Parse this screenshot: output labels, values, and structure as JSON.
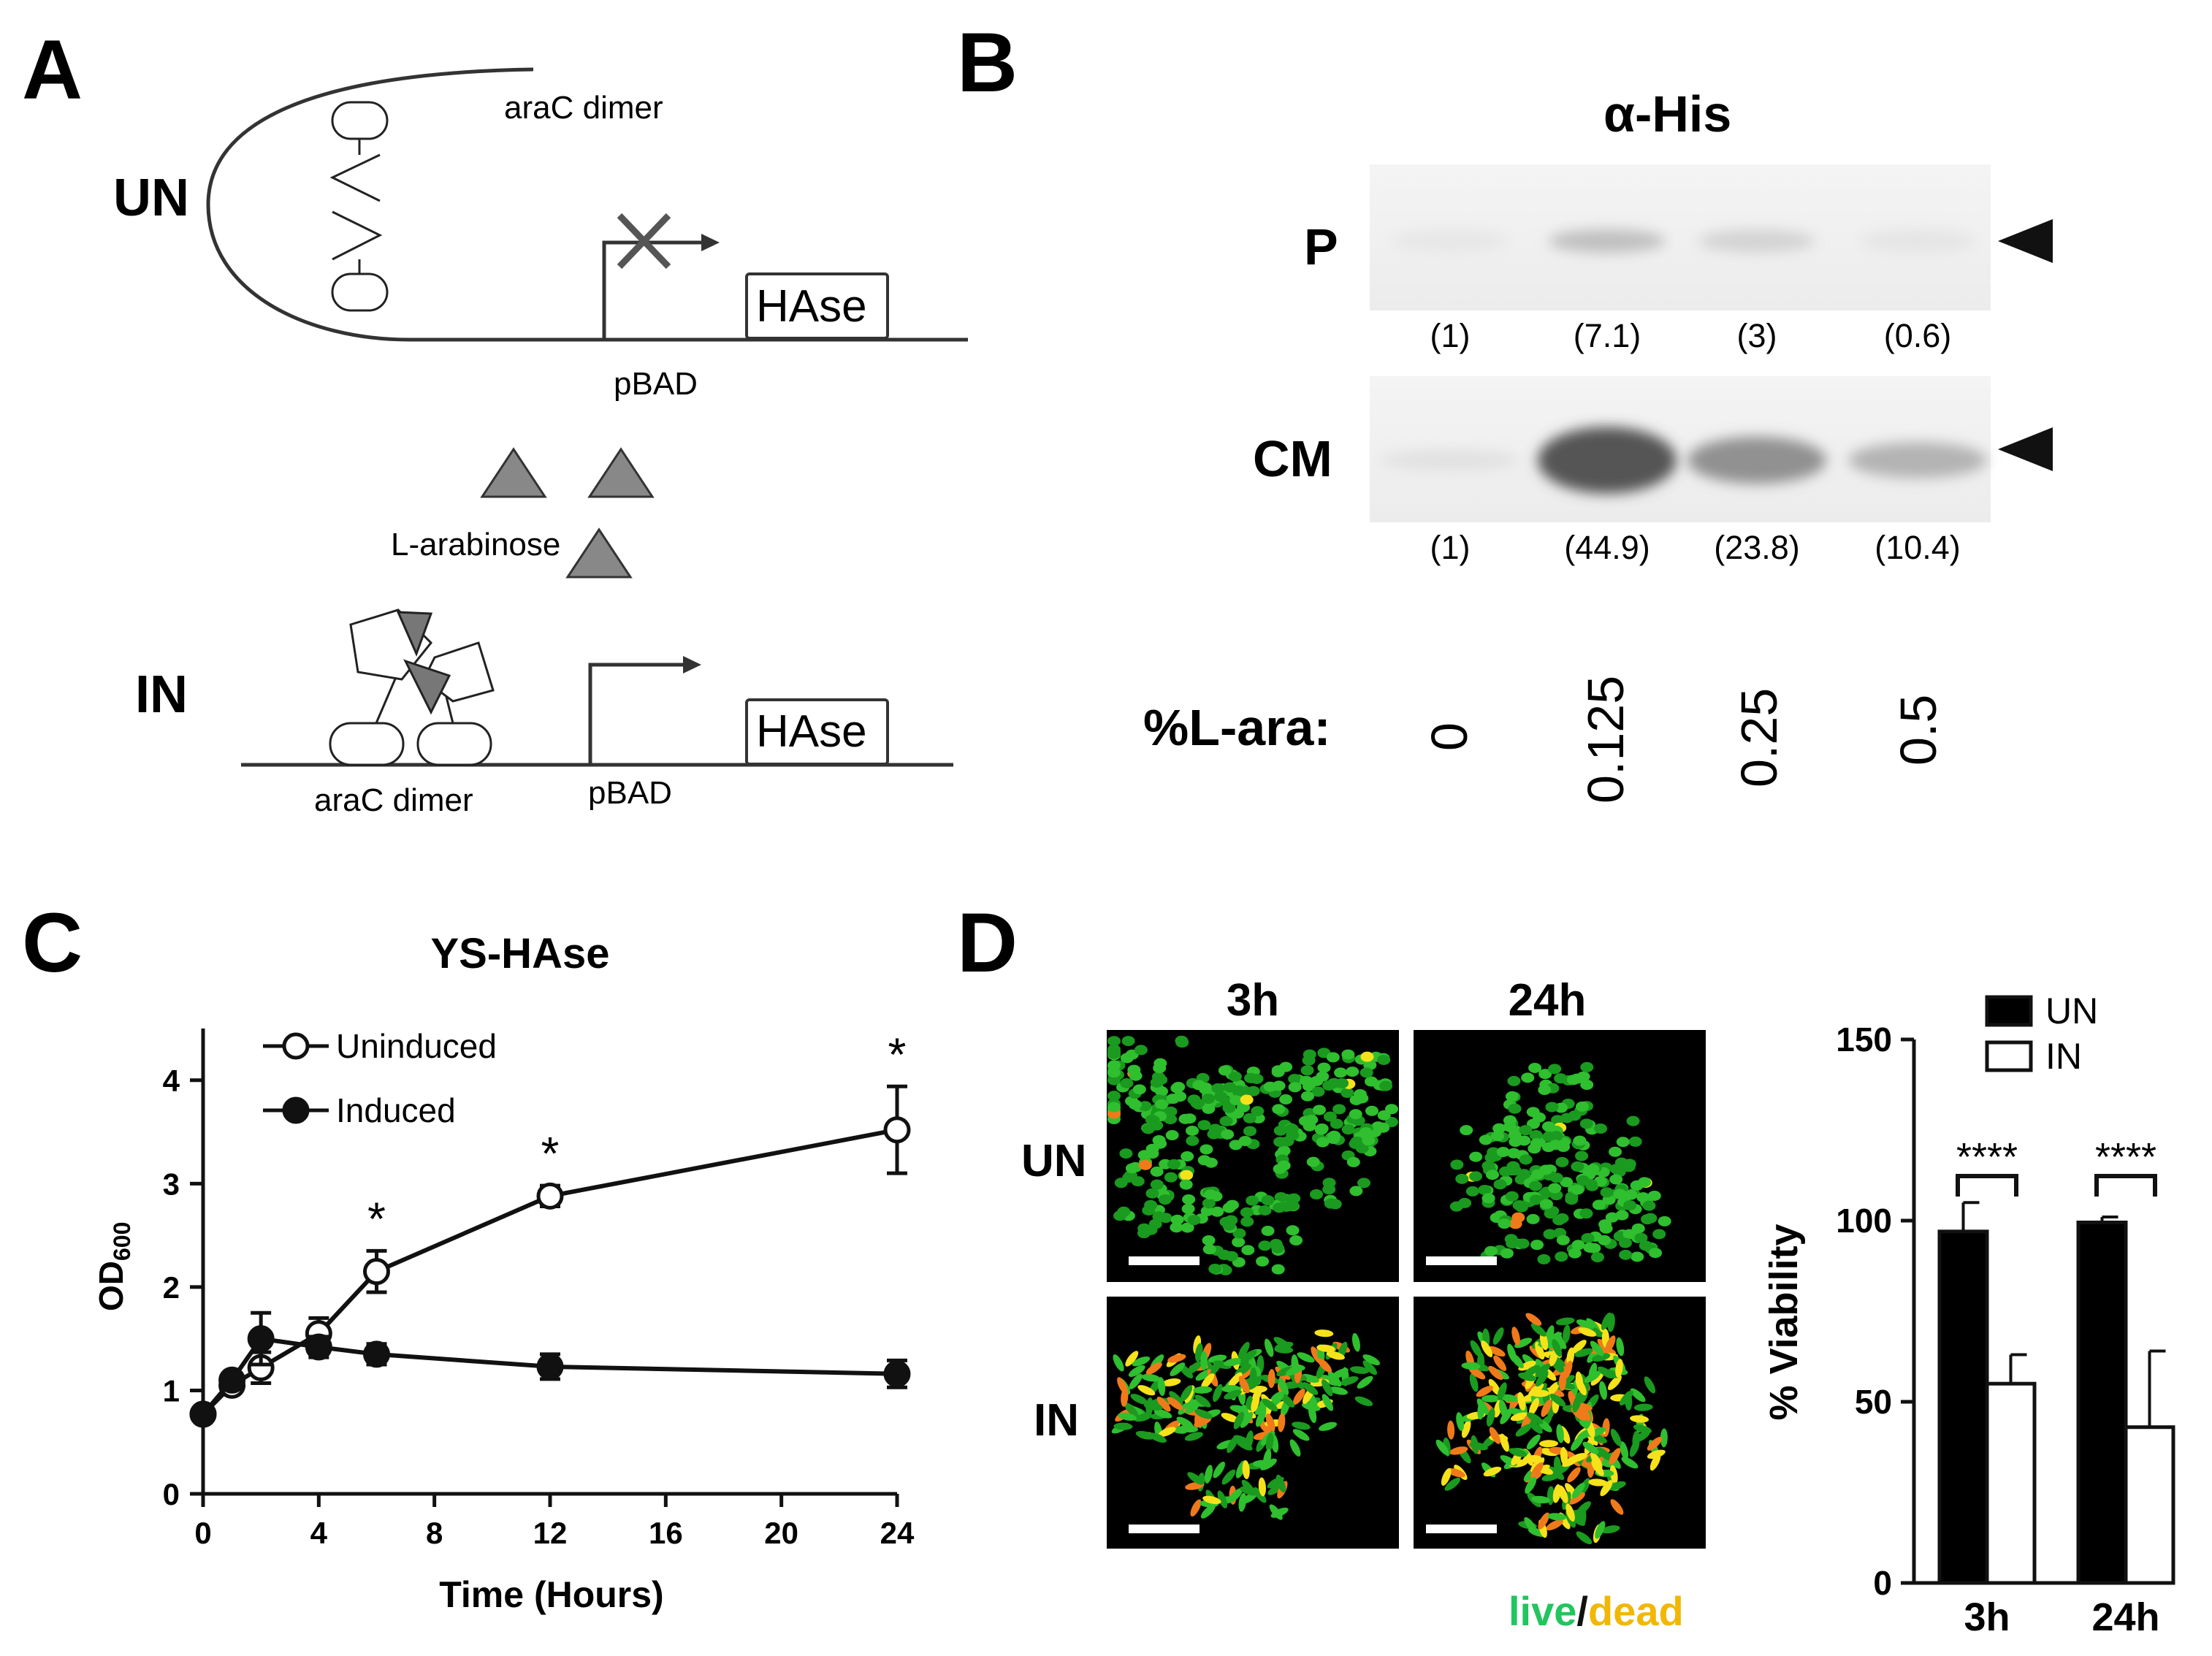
{
  "panels": {
    "A": {
      "letter": "A",
      "un_label": "UN",
      "in_label": "IN",
      "arac_top": "araC dimer",
      "arac_bottom": "araC dimer",
      "pbad_top": "pBAD",
      "pbad_bottom": "pBAD",
      "hase_top": "HAse",
      "hase_bottom": "HAse",
      "inducer": "L-arabinose"
    },
    "B": {
      "letter": "B",
      "title": "α-His",
      "row_p": "P",
      "row_cm": "CM",
      "p_quant": [
        "(1)",
        "(7.1)",
        "(3)",
        "(0.6)"
      ],
      "cm_quant": [
        "(1)",
        "(44.9)",
        "(23.8)",
        "(10.4)"
      ],
      "lara_label": "%L-ara:",
      "lara_values": [
        "0",
        "0.125",
        "0.25",
        "0.5"
      ],
      "p_band_intensity": [
        0.02,
        0.22,
        0.12,
        0.03
      ],
      "cm_band_intensity": [
        0.05,
        0.75,
        0.45,
        0.28
      ]
    },
    "C": {
      "letter": "C",
      "star": "*"
    },
    "D": {
      "letter": "D",
      "col_3h": "3h",
      "col_24h": "24h",
      "row_un": "UN",
      "row_in": "IN",
      "live": "live",
      "slash": "/",
      "dead": "dead",
      "significance": "****"
    }
  },
  "chart_data": [
    {
      "type": "line",
      "title": "YS-HAse",
      "xlabel": "Time (Hours)",
      "ylabel": "OD",
      "ylabel_sub": "600",
      "xlim": [
        0,
        24
      ],
      "ylim": [
        0,
        4.5
      ],
      "xticks": [
        0,
        4,
        8,
        12,
        16,
        20,
        24
      ],
      "yticks": [
        0,
        1,
        2,
        3,
        4
      ],
      "legend": "top-left",
      "series": [
        {
          "name": "Uninduced",
          "marker": "open",
          "x": [
            0,
            1,
            2,
            4,
            6,
            12,
            24
          ],
          "y": [
            0.77,
            1.05,
            1.22,
            1.55,
            2.15,
            2.88,
            3.52
          ],
          "err": [
            0.05,
            0.07,
            0.15,
            0.15,
            0.2,
            0.1,
            0.42
          ]
        },
        {
          "name": "Induced",
          "marker": "filled",
          "x": [
            0,
            1,
            2,
            4,
            6,
            12,
            24
          ],
          "y": [
            0.77,
            1.1,
            1.5,
            1.42,
            1.35,
            1.23,
            1.16
          ],
          "err": [
            0.05,
            0.07,
            0.25,
            0.1,
            0.1,
            0.12,
            0.13
          ]
        }
      ],
      "significance_x": [
        6,
        12,
        24
      ]
    },
    {
      "type": "bar",
      "title": "",
      "xlabel": "",
      "ylabel": "% Viability",
      "ylim": [
        0,
        150
      ],
      "yticks": [
        0,
        50,
        100,
        150
      ],
      "categories": [
        "3h",
        "24h"
      ],
      "legend": "top-right",
      "series": [
        {
          "name": "UN",
          "color": "#000000",
          "values": [
            97,
            99.5
          ],
          "err": [
            8,
            1.5
          ]
        },
        {
          "name": "IN",
          "color": "#ffffff",
          "values": [
            55,
            43
          ],
          "err": [
            8,
            21
          ]
        }
      ]
    }
  ]
}
